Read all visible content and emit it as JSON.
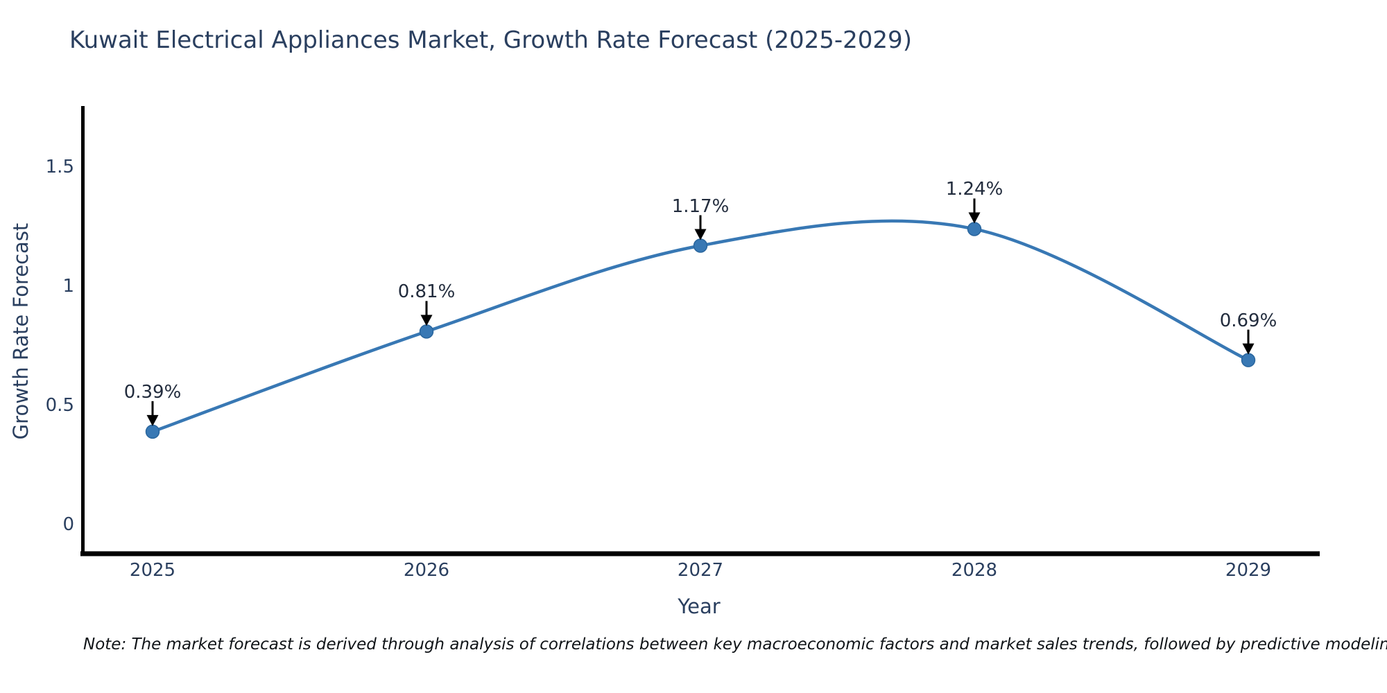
{
  "header": {
    "title": "Kuwait Electrical Appliances Market, Growth Rate Forecast (2025-2029)"
  },
  "footer": {
    "note": "Note: The market forecast is derived through analysis of correlations between key macroeconomic factors and market sales trends, followed by predictive modeling to project future sales"
  },
  "chart_data": {
    "type": "line",
    "title": "Kuwait Electrical Appliances Market, Growth Rate Forecast (2025-2029)",
    "xlabel": "Year",
    "ylabel": "Growth Rate Forecast",
    "categories": [
      2025,
      2026,
      2027,
      2028,
      2029
    ],
    "values": [
      0.39,
      0.81,
      1.17,
      1.24,
      0.69
    ],
    "point_labels": [
      "0.39%",
      "0.81%",
      "1.17%",
      "1.24%",
      "0.69%"
    ],
    "ytick_values": [
      0,
      0.5,
      1,
      1.5
    ],
    "ytick_labels": [
      "0",
      "0.5",
      "1",
      "1.5"
    ],
    "ylim": [
      -0.13,
      1.75
    ],
    "grid": false,
    "legend": false,
    "line_shape": "spline",
    "marker_style": "circle",
    "annotation_style": "label-with-down-arrow",
    "colors": {
      "line": "#3878b4",
      "marker_fill": "#3878b4",
      "marker_edge": "#2a669e",
      "arrow": "#000000",
      "axis": "#000000",
      "axis_text": "#2a3f5f",
      "annotation_text": "#222c3d"
    }
  }
}
